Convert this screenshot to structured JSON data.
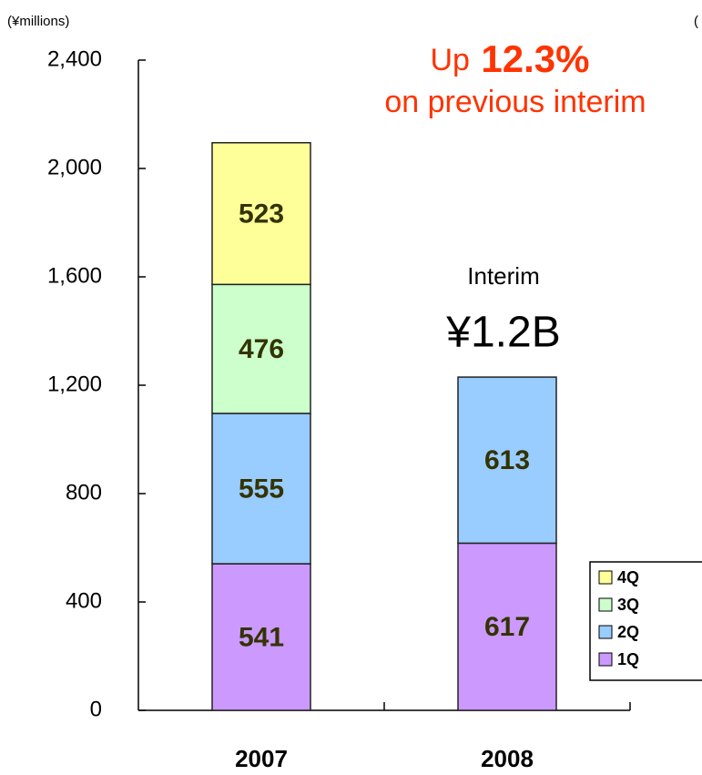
{
  "chart_data": {
    "type": "stacked_bar",
    "unit_label": "(¥millions)",
    "right_unit_label": "(",
    "headline": {
      "prefix": "Up",
      "value": "12.3%",
      "suffix": "on previous interim"
    },
    "annotation": {
      "title": "Interim",
      "value": "¥1.2B"
    },
    "categories": [
      "2007",
      "2008"
    ],
    "series": [
      {
        "name": "1Q",
        "color": "#cc99ff",
        "values": [
          541,
          617
        ]
      },
      {
        "name": "2Q",
        "color": "#99ccff",
        "values": [
          555,
          613
        ]
      },
      {
        "name": "3Q",
        "color": "#ccffcc",
        "values": [
          476,
          null
        ]
      },
      {
        "name": "4Q",
        "color": "#ffff99",
        "values": [
          523,
          null
        ]
      }
    ],
    "ylim": [
      0,
      2400
    ],
    "yticks": [
      0,
      400,
      800,
      {
        "value": 1200,
        "label": "1,200"
      },
      {
        "value": 1600,
        "label": "1,600"
      },
      {
        "value": 2000,
        "label": "2,000"
      },
      {
        "value": 2400,
        "label": "2,400"
      }
    ],
    "legend": "lower right"
  }
}
